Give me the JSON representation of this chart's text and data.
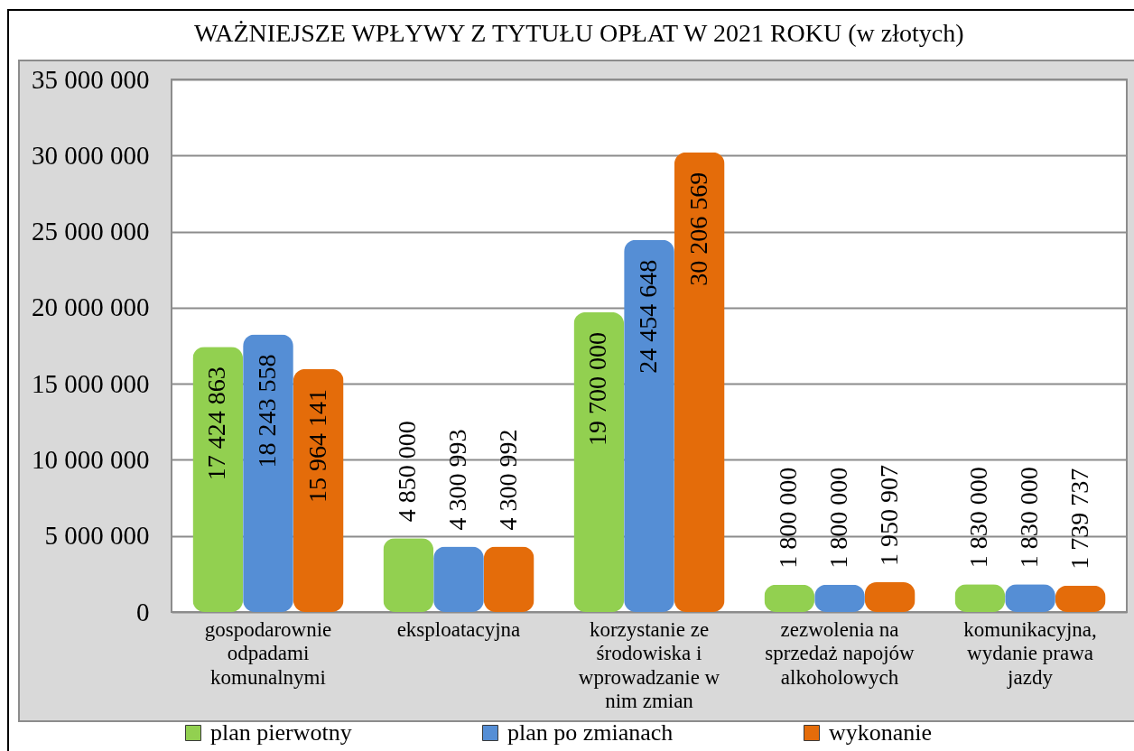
{
  "chart_data": {
    "type": "bar",
    "title": "WAŻNIEJSZE WPŁYWY Z TYTUŁU OPŁAT W 2021 ROKU (w złotych)",
    "categories": [
      "gospodarownie odpadami komunalnymi",
      "eksploatacyjna",
      "korzystanie ze środowiska i wprowadzanie w nim zmian",
      "zezwolenia na sprzedaż napojów alkoholowych",
      "komunikacyjna, wydanie prawa jazdy"
    ],
    "series": [
      {
        "name": "plan pierwotny",
        "color": "#92d050",
        "values": [
          17424863,
          4850000,
          19700000,
          1800000,
          1830000
        ],
        "value_labels": [
          "17 424 863",
          "4 850 000",
          "19 700 000",
          "1 800 000",
          "1 830 000"
        ]
      },
      {
        "name": "plan po zmianach",
        "color": "#558ed5",
        "values": [
          18243558,
          4300993,
          24454648,
          1800000,
          1830000
        ],
        "value_labels": [
          "18 243 558",
          "4 300 993",
          "24 454 648",
          "1 800 000",
          "1 830 000"
        ]
      },
      {
        "name": "wykonanie",
        "color": "#e46c0a",
        "values": [
          15964141,
          4300992,
          30206569,
          1950907,
          1739737
        ],
        "value_labels": [
          "15 964 141",
          "4 300 992",
          "30 206 569",
          "1 950 907",
          "1 739 737"
        ]
      }
    ],
    "ylim": [
      0,
      35000000
    ],
    "yticks": [
      0,
      {
        "value": 5000000,
        "label": "5 000 000"
      },
      {
        "value": 10000000,
        "label": "10 000 000"
      },
      {
        "value": 15000000,
        "label": "15 000 000"
      },
      {
        "value": 20000000,
        "label": "20 000 000"
      },
      {
        "value": 25000000,
        "label": "25 000 000"
      },
      {
        "value": 30000000,
        "label": "30 000 000"
      },
      {
        "value": 35000000,
        "label": "35 000 000"
      }
    ],
    "grid": true,
    "legend": "bottom"
  }
}
